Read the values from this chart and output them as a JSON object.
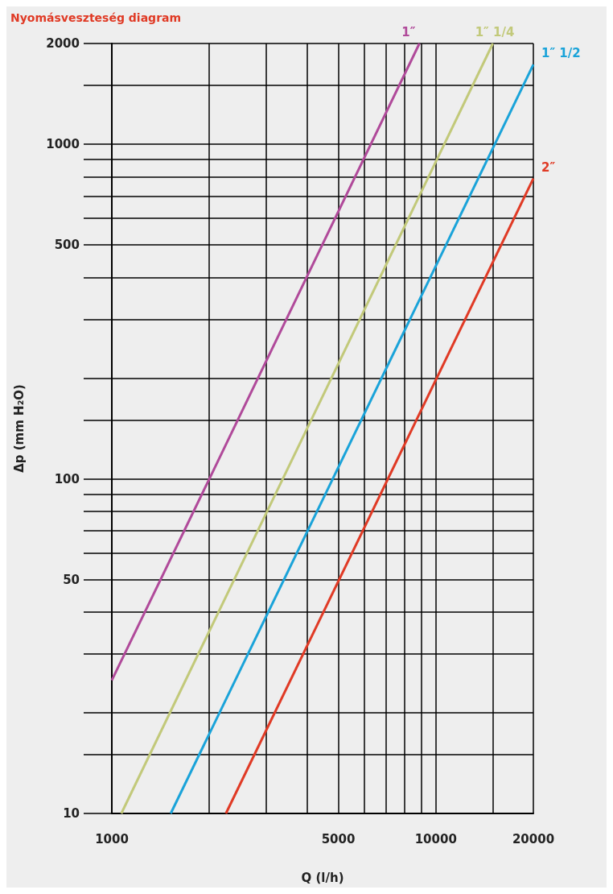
{
  "chart_data": {
    "type": "line",
    "title": "Nyomásveszteség diagram",
    "xlabel": "Q (l/h)",
    "ylabel": "Δp (mm H₂O)",
    "log": "xy",
    "grid": true,
    "marker": "none",
    "legend": false,
    "xlim": [
      1000,
      20000
    ],
    "ylim": [
      10,
      2000
    ],
    "xticks": [
      1000,
      {
        "value": 2000,
        "label": null
      },
      {
        "value": 3000,
        "label": null
      },
      {
        "value": 4000,
        "label": null
      },
      5000,
      {
        "value": 6000,
        "label": null
      },
      {
        "value": 7000,
        "label": null
      },
      {
        "value": 8000,
        "label": null
      },
      {
        "value": 9000,
        "label": null
      },
      10000,
      {
        "value": 15000,
        "label": null
      },
      20000
    ],
    "yticks": [
      10,
      {
        "value": 15,
        "label": null
      },
      {
        "value": 20,
        "label": null
      },
      {
        "value": 30,
        "label": null
      },
      {
        "value": 40,
        "label": null
      },
      50,
      {
        "value": 60,
        "label": null
      },
      {
        "value": 70,
        "label": null
      },
      {
        "value": 80,
        "label": null
      },
      {
        "value": 90,
        "label": null
      },
      100,
      {
        "value": 150,
        "label": null
      },
      {
        "value": 200,
        "label": null
      },
      {
        "value": 300,
        "label": null
      },
      {
        "value": 400,
        "label": null
      },
      500,
      {
        "value": 600,
        "label": null
      },
      {
        "value": 700,
        "label": null
      },
      {
        "value": 800,
        "label": null
      },
      {
        "value": 900,
        "label": null
      },
      1000,
      {
        "value": 1500,
        "label": null
      },
      2000
    ],
    "series": [
      {
        "name": "1″",
        "color": "#b04a9a",
        "x": [
          1000,
          2000,
          8900
        ],
        "values": [
          25,
          100,
          2000
        ]
      },
      {
        "name": "1″ 1/4",
        "color": "#c2c97a",
        "x": [
          1070,
          15000
        ],
        "values": [
          10,
          2000
        ]
      },
      {
        "name": "1″ 1/2",
        "color": "#1aa3d9",
        "x": [
          1520,
          20000
        ],
        "values": [
          10,
          1730
        ]
      },
      {
        "name": "2″",
        "color": "#e03a25",
        "x": [
          2250,
          20000
        ],
        "values": [
          10,
          790
        ]
      }
    ]
  }
}
